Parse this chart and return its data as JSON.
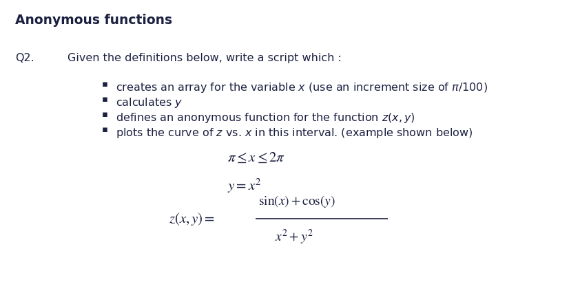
{
  "title": "Anonymous functions",
  "q_label": "Q2.",
  "q_text": "Given the definitions below, write a script which :",
  "bullet1": "creates an array for the variable $x$ (use an increment size of $\\pi$/100)",
  "bullet2": "calculates $y$",
  "bullet3": "defines an anonymous function for the function $z(x,y)$",
  "bullet4": "plots the curve of $z$ vs. $x$ in this interval. (example shown below)",
  "eq1": "$\\pi \\leq x \\leq 2\\pi$",
  "eq2": "$y = x^2$",
  "eq3_lhs": "$z(x, y) =$",
  "eq3_num": "$\\sin(x) + \\cos(y)$",
  "eq3_den": "$x^2 + y^2$",
  "bg_color": "#ffffff",
  "text_color": "#1c2040",
  "title_fontsize": 13.5,
  "body_fontsize": 11.5,
  "math_fontsize": 14,
  "fig_width": 8.26,
  "fig_height": 4.13,
  "dpi": 100
}
